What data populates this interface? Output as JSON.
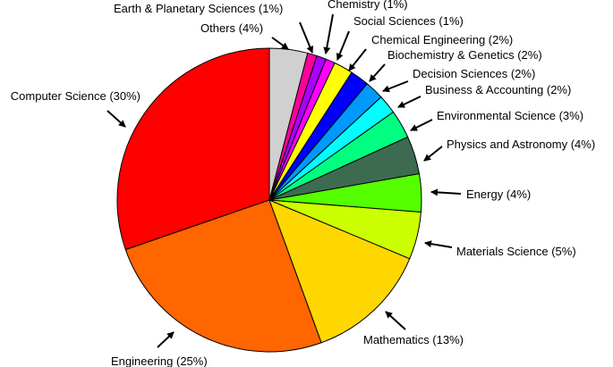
{
  "chart_data": {
    "type": "pie",
    "title": "",
    "slices": [
      {
        "label": "Computer Science (30%)",
        "value": 30,
        "color": "#ff0000"
      },
      {
        "label": "Engineering (25%)",
        "value": 25,
        "color": "#ff6600"
      },
      {
        "label": "Mathematics (13%)",
        "value": 13,
        "color": "#ffd700"
      },
      {
        "label": "Materials Science (5%)",
        "value": 5,
        "color": "#ccff00"
      },
      {
        "label": "Energy (4%)",
        "value": 4,
        "color": "#55ff00"
      },
      {
        "label": "Physics and Astronomy (4%)",
        "value": 4,
        "color": "#3d6b52"
      },
      {
        "label": "Environmental Science (3%)",
        "value": 3,
        "color": "#00ff80"
      },
      {
        "label": "Business & Accounting (2%)",
        "value": 2,
        "color": "#00ffff"
      },
      {
        "label": "Decision Sciences (2%)",
        "value": 2,
        "color": "#0099ff"
      },
      {
        "label": "Biochemistry & Genetics (2%)",
        "value": 2,
        "color": "#0000ff"
      },
      {
        "label": "Chemical Engineering (2%)",
        "value": 2,
        "color": "#ffff00"
      },
      {
        "label": "Social Sciences (1%)",
        "value": 1,
        "color": "#ff00ff"
      },
      {
        "label": "Chemistry (1%)",
        "value": 1,
        "color": "#aa00ff"
      },
      {
        "label": "Earth & Planetary Sciences (1%)",
        "value": 1,
        "color": "#ff0099"
      },
      {
        "label": "Others (4%)",
        "value": 4,
        "color": "#d0d0d0"
      }
    ]
  }
}
